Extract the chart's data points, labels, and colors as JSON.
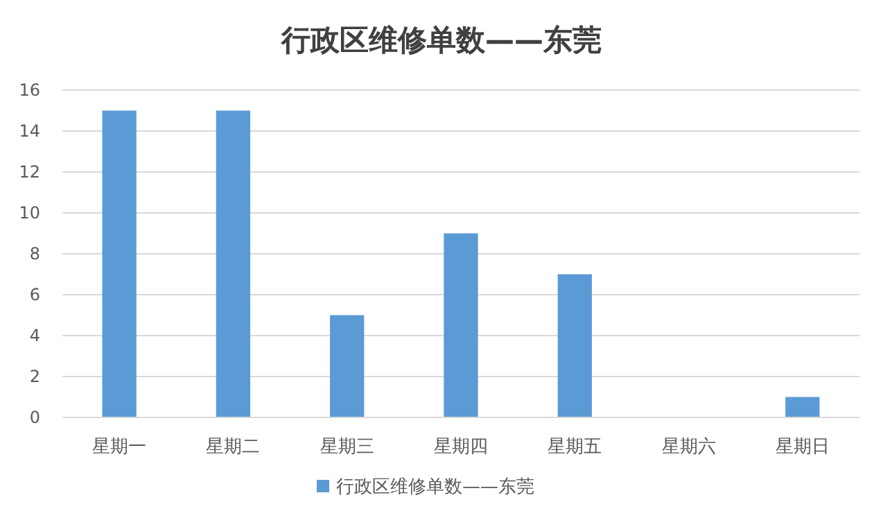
{
  "chart_data": {
    "type": "bar",
    "title": "行政区维修单数——东莞",
    "categories": [
      "星期一",
      "星期二",
      "星期三",
      "星期四",
      "星期五",
      "星期六",
      "星期日"
    ],
    "series": [
      {
        "name": "行政区维修单数——东莞",
        "color": "#5b9bd5",
        "values": [
          15,
          15,
          5,
          9,
          7,
          0,
          1
        ]
      }
    ],
    "ylim": [
      0,
      16
    ],
    "yticks": [
      0,
      2,
      4,
      6,
      8,
      10,
      12,
      14,
      16
    ],
    "grid": "y",
    "legend": "bottom"
  }
}
